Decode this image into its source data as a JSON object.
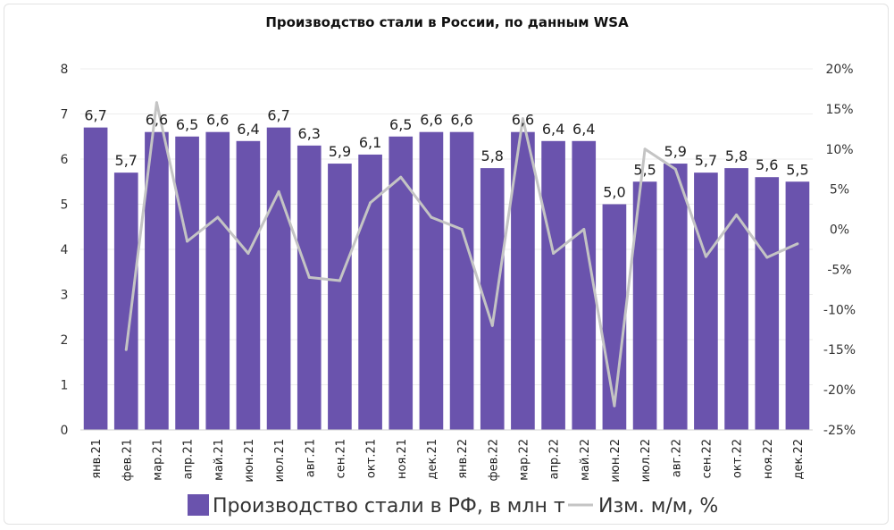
{
  "chart_data": {
    "type": "bar",
    "title": "Производство стали в России, по данным WSA",
    "categories": [
      "янв.21",
      "фев.21",
      "мар.21",
      "апр.21",
      "май.21",
      "июн.21",
      "июл.21",
      "авг.21",
      "сен.21",
      "окт.21",
      "ноя.21",
      "дек.21",
      "янв.22",
      "фев.22",
      "мар.22",
      "апр.22",
      "май.22",
      "июн.22",
      "июл.22",
      "авг.22",
      "сен.22",
      "окт.22",
      "ноя.22",
      "дек.22"
    ],
    "series": [
      {
        "name": "Производство стали в РФ, в млн т",
        "type": "bar",
        "axis": "left",
        "color": "#6a53ad",
        "values": [
          6.7,
          5.7,
          6.6,
          6.5,
          6.6,
          6.4,
          6.7,
          6.3,
          5.9,
          6.1,
          6.5,
          6.6,
          6.6,
          5.8,
          6.6,
          6.4,
          6.4,
          5.0,
          5.5,
          5.9,
          5.7,
          5.8,
          5.6,
          5.5
        ],
        "labels": [
          "6,7",
          "5,7",
          "6,6",
          "6,5",
          "6,6",
          "6,4",
          "6,7",
          "6,3",
          "5,9",
          "6,1",
          "6,5",
          "6,6",
          "6,6",
          "5,8",
          "6,6",
          "6,4",
          "6,4",
          "5,0",
          "5,5",
          "5,9",
          "5,7",
          "5,8",
          "5,6",
          "5,5"
        ]
      },
      {
        "name": "Изм. м/м, %",
        "type": "line",
        "axis": "right",
        "color": "#c4c4c4",
        "values": [
          null,
          -15,
          15.8,
          -1.5,
          1.5,
          -3,
          4.7,
          -6,
          -6.4,
          3.3,
          6.5,
          1.5,
          0,
          -12,
          13.8,
          -3,
          0,
          -22,
          10,
          7.5,
          -3.4,
          1.8,
          -3.5,
          -1.8
        ]
      }
    ],
    "y_left": {
      "min": 0,
      "max": 8,
      "ticks": [
        "0",
        "1",
        "2",
        "3",
        "4",
        "5",
        "6",
        "7",
        "8"
      ]
    },
    "y_right": {
      "min": -25,
      "max": 20,
      "ticks": [
        "-25%",
        "-20%",
        "-15%",
        "-10%",
        "-5%",
        "0%",
        "5%",
        "10%",
        "15%",
        "20%"
      ]
    },
    "grid": true,
    "legend": "bottom"
  }
}
